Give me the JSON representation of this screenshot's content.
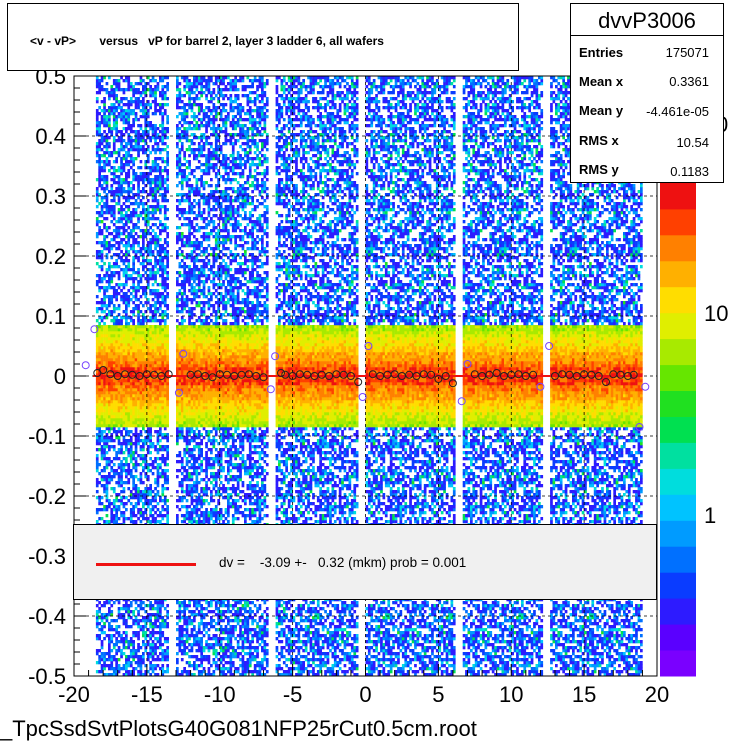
{
  "title": "<v - vP>       versus   vP for barrel 2, layer 3 ladder 6, all wafers",
  "stats": {
    "name": "dvvP3006",
    "rows": [
      {
        "label": "Entries",
        "value": "175071"
      },
      {
        "label": "Mean x",
        "value": "0.3361"
      },
      {
        "label": "Mean y",
        "value": "-4.461e-05"
      },
      {
        "label": "RMS x",
        "value": "10.54"
      },
      {
        "label": "RMS y",
        "value": "0.1183"
      }
    ]
  },
  "legend": {
    "text": "dv =    -3.09 +-   0.32 (mkm) prob = 0.001",
    "line_color": "#ee1111"
  },
  "footer": "_TpcSsdSvtPlotsG40G081NFP25rCut0.5cm.root",
  "chart_data": {
    "type": "heatmap",
    "title": "<v - vP>       versus   vP for barrel 2, layer 3 ladder 6, all wafers",
    "xlabel": "",
    "ylabel": "",
    "xlim": [
      -20,
      20
    ],
    "ylim": [
      -0.5,
      0.5
    ],
    "x_ticks": [
      -20,
      -15,
      -10,
      -5,
      0,
      5,
      10,
      15,
      20
    ],
    "x_tick_labels": [
      "-20",
      "-15",
      "-10",
      "-5",
      "0",
      "5",
      "10",
      "15",
      "20"
    ],
    "y_ticks": [
      -0.5,
      -0.4,
      -0.3,
      -0.2,
      -0.1,
      0,
      0.1,
      0.2,
      0.3,
      0.4,
      0.5
    ],
    "y_tick_labels": [
      "-0.5",
      "-0.4",
      "-0.3",
      "-0.2",
      "-0.1",
      "0",
      "0.1",
      "0.2",
      "0.3",
      "0.4",
      "0.5"
    ],
    "grid": true,
    "colorbar": {
      "scale": "log",
      "tick_labels": [
        "1",
        "10"
      ],
      "partial_label": "0"
    },
    "x_gaps": [
      -18.8,
      -13.2,
      -6.4,
      -0.3,
      6.4,
      12.4
    ],
    "data_range_x": [
      -18.7,
      19.0
    ],
    "profile": {
      "x": [
        -19.2,
        -18.6,
        -18.4,
        -18.0,
        -17.5,
        -17.0,
        -16.5,
        -16.0,
        -15.5,
        -15.0,
        -14.5,
        -14.0,
        -13.5,
        -12.8,
        -12.5,
        -12.0,
        -11.5,
        -11.0,
        -10.5,
        -10.0,
        -9.5,
        -9.0,
        -8.5,
        -8.0,
        -7.5,
        -7.0,
        -6.5,
        -6.2,
        -5.8,
        -5.5,
        -5.0,
        -4.5,
        -4.0,
        -3.5,
        -3.0,
        -2.5,
        -2.0,
        -1.5,
        -1.0,
        -0.5,
        -0.2,
        0.2,
        0.5,
        1.0,
        1.5,
        2.0,
        2.5,
        3.0,
        3.5,
        4.0,
        4.5,
        5.0,
        5.5,
        6.0,
        6.6,
        7.0,
        7.5,
        8.0,
        8.5,
        9.0,
        9.5,
        10.0,
        10.5,
        11.0,
        11.5,
        12.0,
        12.6,
        13.0,
        13.5,
        14.0,
        14.5,
        15.0,
        15.5,
        16.0,
        16.5,
        17.0,
        17.5,
        18.0,
        18.4,
        18.8,
        19.2
      ],
      "y": [
        0.018,
        0.078,
        0.005,
        0.01,
        0.003,
        0.0,
        0.003,
        0.002,
        0.0,
        0.003,
        0.002,
        0.0,
        0.003,
        -0.028,
        0.037,
        0.002,
        0.003,
        0.0,
        -0.002,
        0.003,
        0.002,
        0.0,
        0.002,
        0.003,
        0.0,
        -0.002,
        -0.022,
        0.033,
        0.005,
        0.002,
        0.0,
        0.003,
        0.002,
        0.0,
        0.002,
        0.0,
        0.003,
        0.002,
        0.0,
        -0.01,
        -0.035,
        0.05,
        0.003,
        0.0,
        0.002,
        0.003,
        0.0,
        0.002,
        0.0,
        0.003,
        0.002,
        -0.005,
        0.0,
        -0.012,
        -0.042,
        0.02,
        0.003,
        0.0,
        0.002,
        0.005,
        0.0,
        0.002,
        0.003,
        0.0,
        0.002,
        -0.018,
        0.05,
        0.0,
        0.003,
        0.002,
        0.0,
        0.003,
        0.002,
        0.0,
        -0.01,
        0.003,
        0.002,
        0.0,
        0.002,
        -0.085,
        -0.018
      ]
    }
  }
}
